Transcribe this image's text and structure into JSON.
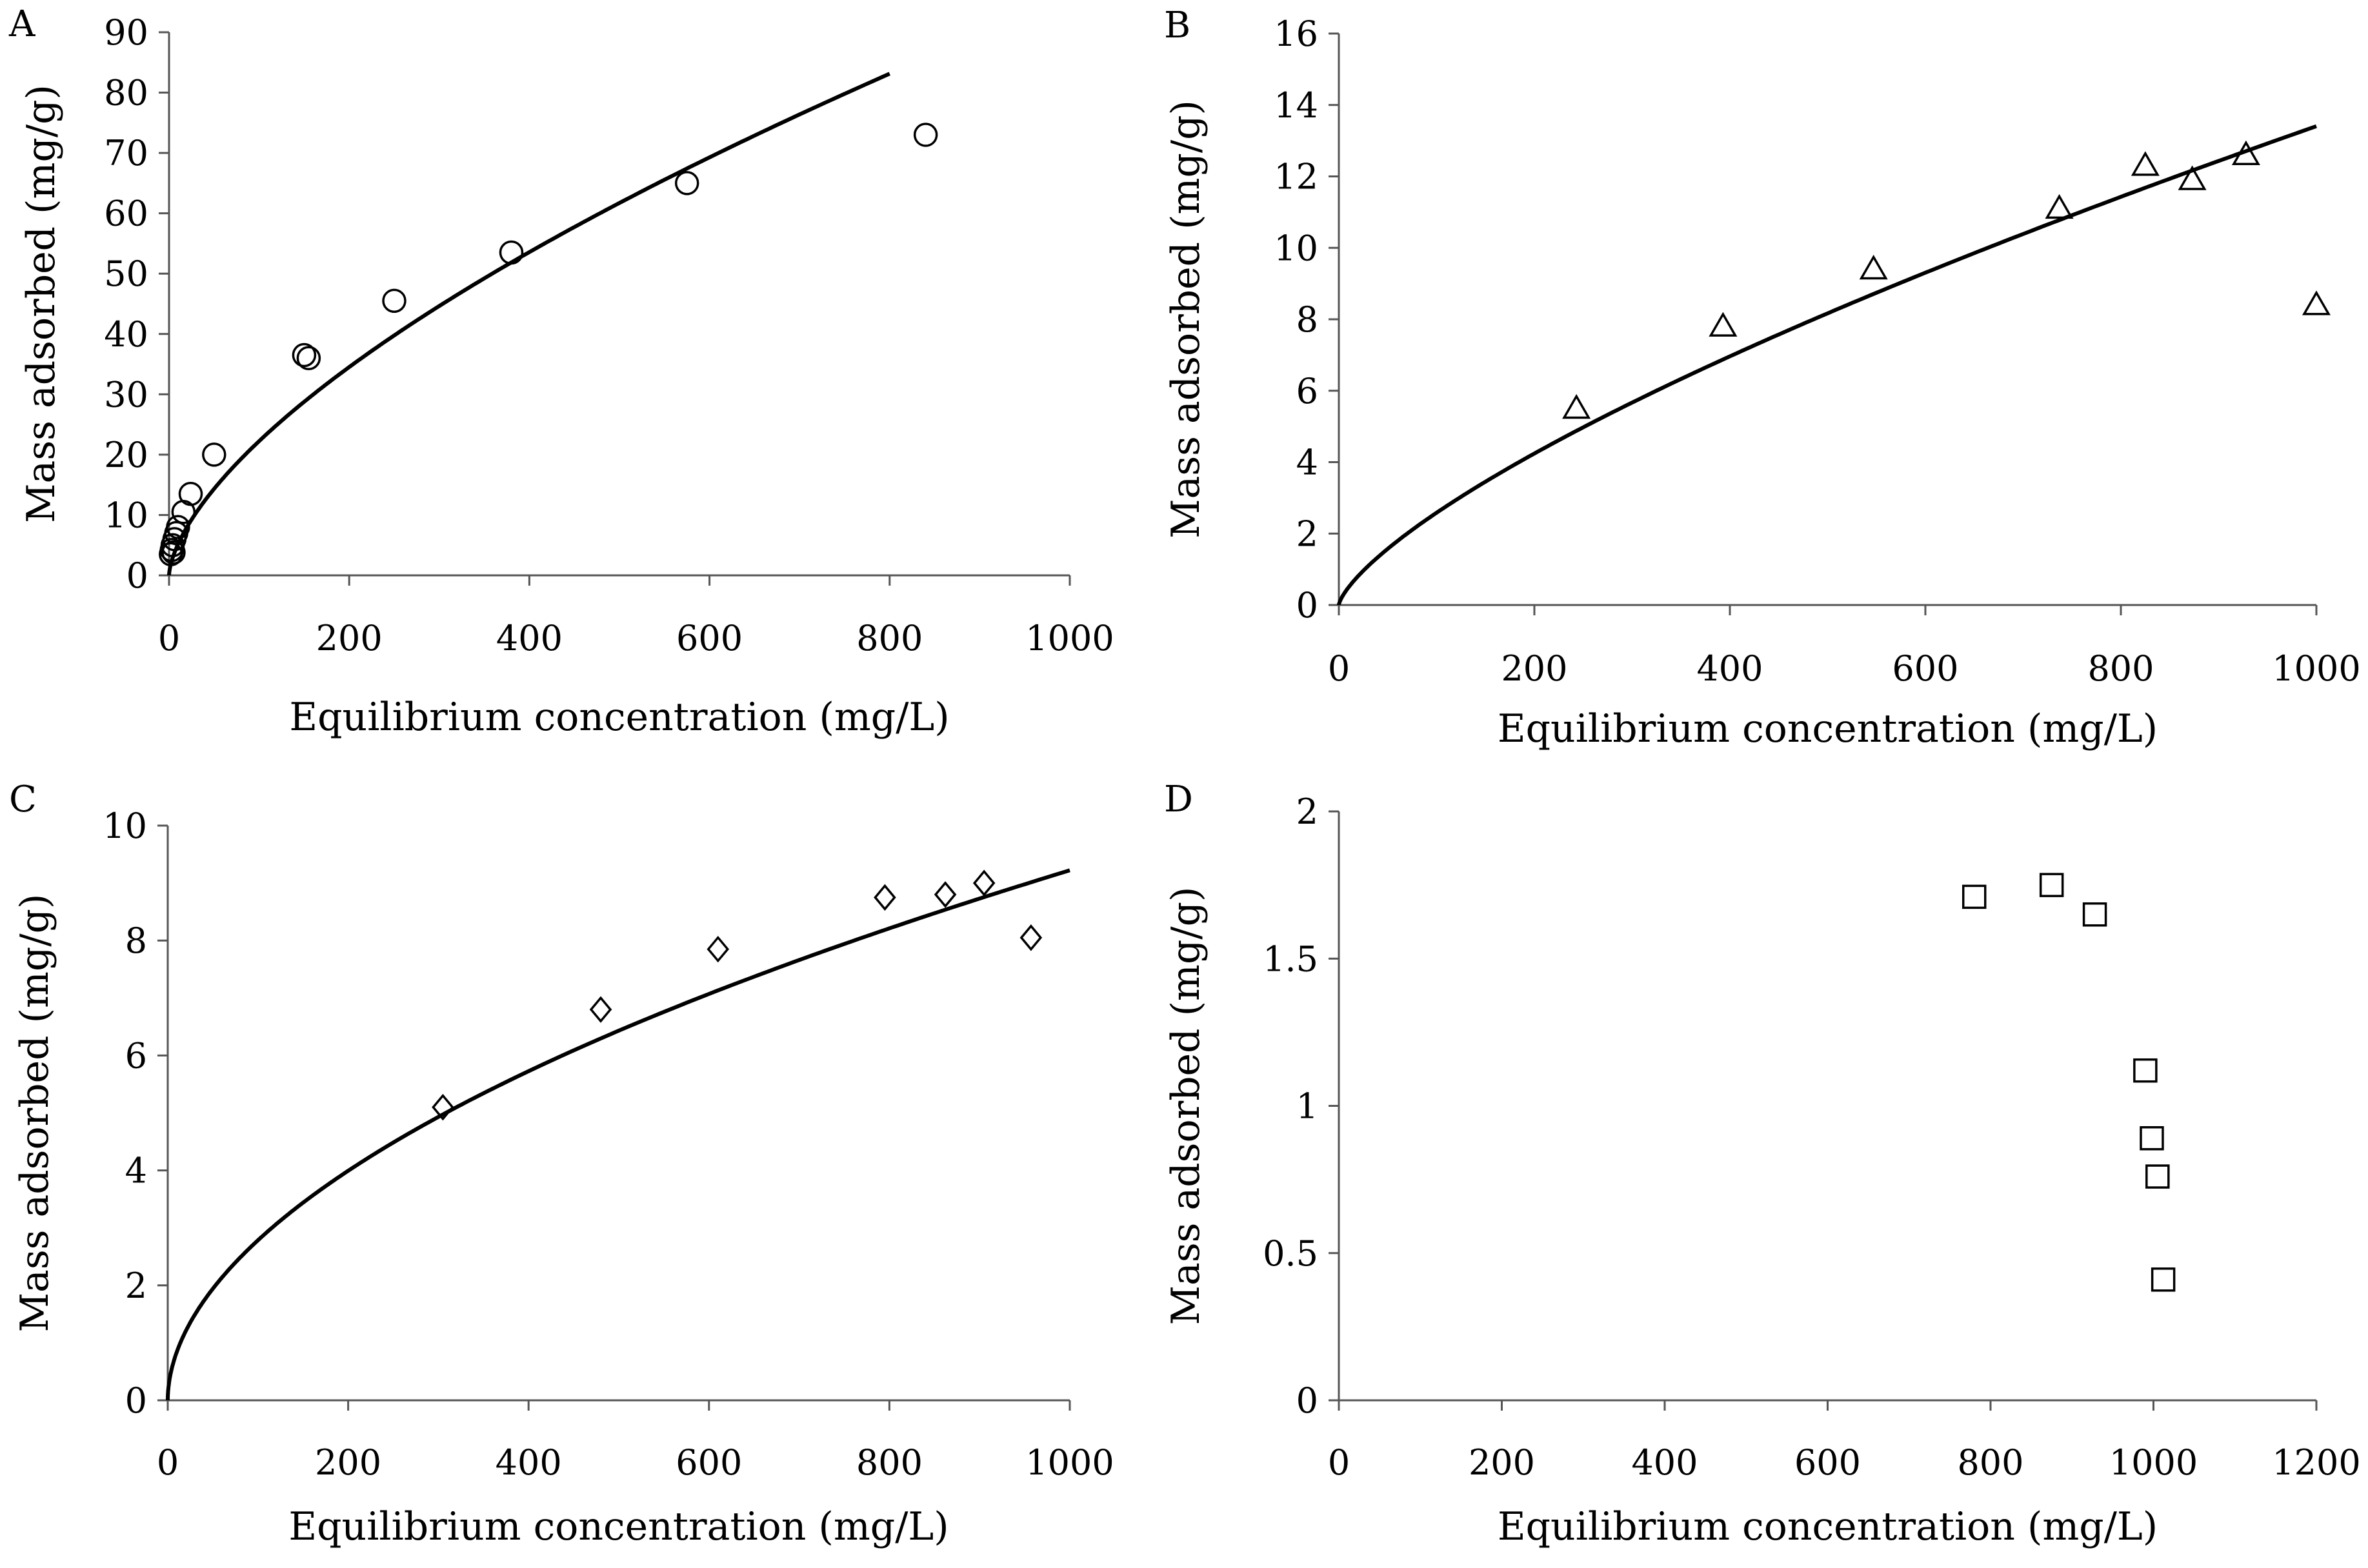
{
  "chart_data": [
    {
      "panel": "A",
      "type": "scatter",
      "xlabel": "Equilibrium concentration (mg/L)",
      "ylabel": "Mass  adsorbed (mg/g)",
      "xlim": [
        0,
        1000
      ],
      "ylim": [
        0,
        90
      ],
      "xticks": [
        0,
        200,
        400,
        600,
        800,
        1000
      ],
      "yticks": [
        0,
        10,
        20,
        30,
        40,
        50,
        60,
        70,
        80,
        90
      ],
      "marker": "circle",
      "points": [
        {
          "x": 2,
          "y": 3.5
        },
        {
          "x": 3,
          "y": 4.2
        },
        {
          "x": 4,
          "y": 5.0
        },
        {
          "x": 5,
          "y": 3.8
        },
        {
          "x": 6,
          "y": 6.0
        },
        {
          "x": 8,
          "y": 7.0
        },
        {
          "x": 10,
          "y": 8.0
        },
        {
          "x": 16,
          "y": 10.5
        },
        {
          "x": 24,
          "y": 13.5
        },
        {
          "x": 50,
          "y": 20.0
        },
        {
          "x": 150,
          "y": 36.5
        },
        {
          "x": 155,
          "y": 36.0
        },
        {
          "x": 250,
          "y": 45.5
        },
        {
          "x": 380,
          "y": 53.5
        },
        {
          "x": 575,
          "y": 65.0
        },
        {
          "x": 840,
          "y": 73.0
        }
      ],
      "fit": {
        "k": 1.2,
        "n": 0.634,
        "xmin": 0,
        "xmax": 800
      }
    },
    {
      "panel": "B",
      "type": "scatter",
      "xlabel": "Equilibrium concentration (mg/L)",
      "ylabel": "Mass  adsorbed (mg/g)",
      "xlim": [
        0,
        1000
      ],
      "ylim": [
        0,
        16
      ],
      "xticks": [
        0,
        200,
        400,
        600,
        800,
        1000
      ],
      "yticks": [
        0,
        2,
        4,
        6,
        8,
        10,
        12,
        14,
        16
      ],
      "marker": "triangle",
      "points": [
        {
          "x": 243,
          "y": 5.5
        },
        {
          "x": 393,
          "y": 7.8
        },
        {
          "x": 547,
          "y": 9.4
        },
        {
          "x": 737,
          "y": 11.1
        },
        {
          "x": 825,
          "y": 12.3
        },
        {
          "x": 873,
          "y": 11.9
        },
        {
          "x": 928,
          "y": 12.6
        },
        {
          "x": 1000,
          "y": 8.4
        }
      ],
      "fit": {
        "k": 0.096,
        "n": 0.715,
        "xmin": 0,
        "xmax": 1000
      }
    },
    {
      "panel": "C",
      "type": "scatter",
      "xlabel": "Equilibrium concentration (mg/L)",
      "ylabel": "Mass  adsorbed (mg/g)",
      "xlim": [
        0,
        1000
      ],
      "ylim": [
        0,
        10
      ],
      "xticks": [
        0,
        200,
        400,
        600,
        800,
        1000
      ],
      "yticks": [
        0,
        2,
        4,
        6,
        8,
        10
      ],
      "marker": "diamond",
      "points": [
        {
          "x": 305,
          "y": 5.1
        },
        {
          "x": 480,
          "y": 6.8
        },
        {
          "x": 610,
          "y": 7.85
        },
        {
          "x": 795,
          "y": 8.75
        },
        {
          "x": 862,
          "y": 8.8
        },
        {
          "x": 905,
          "y": 9.0
        },
        {
          "x": 957,
          "y": 8.05
        }
      ],
      "fit": {
        "k": 0.254,
        "n": 0.52,
        "xmin": 0,
        "xmax": 1000
      }
    },
    {
      "panel": "D",
      "type": "scatter",
      "xlabel": "Equilibrium concentration (mg/L)",
      "ylabel": "Mass  adsorbed (mg/g)",
      "xlim": [
        0,
        1200
      ],
      "ylim": [
        0,
        2
      ],
      "xticks": [
        0,
        200,
        400,
        600,
        800,
        1000,
        1200
      ],
      "yticks": [
        0,
        0.5,
        1,
        1.5,
        2
      ],
      "marker": "square",
      "points": [
        {
          "x": 780,
          "y": 1.71
        },
        {
          "x": 875,
          "y": 1.75
        },
        {
          "x": 928,
          "y": 1.65
        },
        {
          "x": 990,
          "y": 1.12
        },
        {
          "x": 998,
          "y": 0.89
        },
        {
          "x": 1005,
          "y": 0.76
        },
        {
          "x": 1012,
          "y": 0.41
        }
      ]
    }
  ]
}
